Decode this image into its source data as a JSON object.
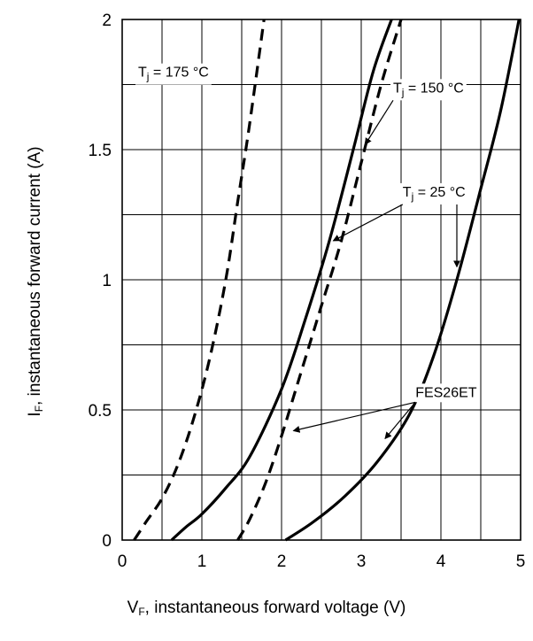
{
  "chart_data": {
    "type": "line",
    "title": "",
    "xlabel": {
      "symbol": "V",
      "sub": "F",
      "text": ", instantaneous forward voltage (V)"
    },
    "ylabel": {
      "symbol": "I",
      "sub": "F",
      "text": ", instantaneous forward current  (A)"
    },
    "xlim": [
      0,
      5
    ],
    "ylim": [
      0,
      2
    ],
    "x_ticks": [
      "0",
      "1",
      "2",
      "3",
      "4",
      "5"
    ],
    "y_ticks": [
      "0",
      "0.5",
      "1",
      "1.5",
      "2"
    ],
    "grid": true,
    "series": [
      {
        "style": "dashed",
        "x": [
          0.15,
          0.3,
          0.5,
          0.7,
          0.9,
          1.1,
          1.3,
          1.45,
          1.6,
          1.78
        ],
        "y": [
          0,
          0.07,
          0.16,
          0.29,
          0.47,
          0.7,
          1.0,
          1.3,
          1.6,
          2.0
        ]
      },
      {
        "style": "solid",
        "x": [
          0.62,
          0.8,
          1.0,
          1.3,
          1.6,
          2.0,
          2.3,
          2.6,
          2.9,
          3.15,
          3.38
        ],
        "y": [
          0,
          0.05,
          0.1,
          0.2,
          0.32,
          0.58,
          0.85,
          1.15,
          1.5,
          1.8,
          2.0
        ]
      },
      {
        "style": "dashed",
        "x": [
          1.45,
          1.6,
          1.8,
          2.0,
          2.2,
          2.5,
          2.75,
          3.0,
          3.25,
          3.5
        ],
        "y": [
          0,
          0.08,
          0.22,
          0.4,
          0.6,
          0.9,
          1.15,
          1.45,
          1.75,
          2.0
        ]
      },
      {
        "style": "solid",
        "x": [
          2.05,
          2.4,
          2.8,
          3.2,
          3.6,
          3.9,
          4.2,
          4.5,
          4.75,
          4.98
        ],
        "y": [
          0,
          0.07,
          0.17,
          0.3,
          0.48,
          0.7,
          1.0,
          1.35,
          1.65,
          2.0
        ]
      }
    ],
    "annotations": [
      {
        "label": "T",
        "sub": "j",
        "text": " = 175 °C",
        "x": 0.2,
        "y": 1.78,
        "arrows": []
      },
      {
        "label": "T",
        "sub": "j",
        "text": " = 150 °C",
        "x": 3.4,
        "y": 1.72,
        "arrows": [
          [
            3.05,
            1.52
          ]
        ]
      },
      {
        "label": "T",
        "sub": "j",
        "text": " = 25 °C",
        "x": 3.52,
        "y": 1.32,
        "arrows": [
          [
            2.65,
            1.15
          ],
          [
            4.2,
            1.05
          ]
        ]
      },
      {
        "label": "FES26ET",
        "sub": "",
        "text": "",
        "x": 3.68,
        "y": 0.55,
        "arrows": [
          [
            2.15,
            0.42
          ],
          [
            3.3,
            0.39
          ]
        ]
      }
    ]
  }
}
